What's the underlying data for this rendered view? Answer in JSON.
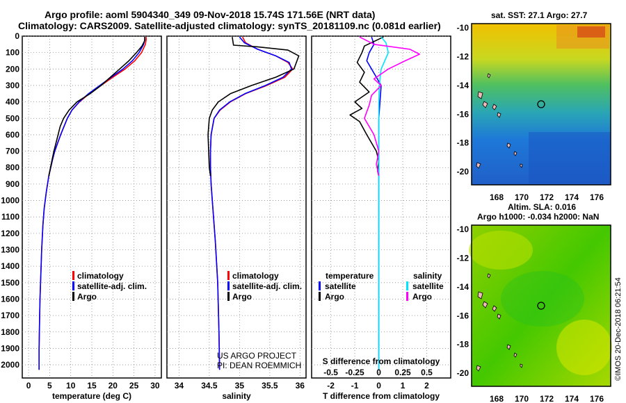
{
  "header": {
    "title_line1": "Argo profile: aoml 5904340_349 09-Nov-2018 15.74S 171.56E (NRT data)",
    "title_line2": "Climatology: CARS2009. Satellite-adjusted climatology: synTS_20181109.nc (0.081d earlier)"
  },
  "colors": {
    "climatology": "#ff0000",
    "satellite": "#0000ff",
    "argo": "#000000",
    "t_satellite": "#0000ff",
    "s_satellite": "#00e5ff",
    "s_argo": "#ff00ff",
    "grid": "#888888"
  },
  "chart_data": [
    {
      "id": "temperature",
      "type": "line",
      "xlabel": "temperature (deg C)",
      "ylabel": "",
      "xlim": [
        -1.5,
        31.5
      ],
      "ylim": [
        2080,
        0
      ],
      "x_ticks": [
        0,
        5,
        10,
        15,
        20,
        25,
        30
      ],
      "x_tick_labels": [
        "0",
        "5",
        "10",
        "15",
        "20",
        "25",
        "30"
      ],
      "y_ticks": [
        0,
        100,
        200,
        300,
        400,
        500,
        600,
        700,
        800,
        900,
        1000,
        1100,
        1200,
        1300,
        1400,
        1500,
        1600,
        1700,
        1800,
        1900,
        2000
      ],
      "y_tick_labels": [
        "0",
        "100",
        "200",
        "300",
        "400",
        "500",
        "600",
        "700",
        "800",
        "900",
        "1000",
        "1100",
        "1200",
        "1300",
        "1400",
        "1500",
        "1600",
        "1700",
        "1800",
        "1900",
        "2000"
      ],
      "grid": true,
      "legend": [
        "climatology",
        "satellite-adj. clim.",
        "Argo"
      ],
      "series": [
        {
          "name": "climatology",
          "color": "#ff0000",
          "x": [
            27.9,
            27.9,
            27.7,
            26.8,
            25.2,
            22.9,
            20.0,
            17.2,
            14.4,
            12.1,
            10.3,
            9.2,
            8.4,
            7.6,
            6.9,
            6.2,
            5.7,
            4.8,
            4.2,
            3.7,
            3.4,
            3.1,
            2.9,
            2.7,
            2.6,
            2.5,
            2.5
          ],
          "y": [
            5,
            20,
            50,
            100,
            150,
            200,
            250,
            300,
            350,
            400,
            450,
            500,
            550,
            600,
            650,
            700,
            750,
            850,
            950,
            1050,
            1150,
            1300,
            1450,
            1600,
            1750,
            1900,
            2030
          ]
        },
        {
          "name": "satellite-adj. clim.",
          "color": "#0000ff",
          "x": [
            27.5,
            27.6,
            27.3,
            26.2,
            24.6,
            22.4,
            19.6,
            16.9,
            14.2,
            12.0,
            10.3,
            9.2,
            8.4,
            7.6,
            6.9,
            6.2,
            5.7,
            4.8,
            4.2,
            3.7,
            3.4,
            3.1,
            2.9,
            2.7,
            2.6,
            2.5,
            2.5
          ],
          "y": [
            5,
            20,
            50,
            100,
            150,
            200,
            250,
            300,
            350,
            400,
            450,
            500,
            550,
            600,
            650,
            700,
            750,
            850,
            950,
            1050,
            1150,
            1300,
            1450,
            1600,
            1750,
            1900,
            2030
          ]
        },
        {
          "name": "Argo",
          "color": "#000000",
          "x": [
            27.6,
            27.5,
            26.9,
            25.6,
            23.8,
            21.6,
            19.4,
            17.2,
            14.6,
            11.5,
            9.6,
            8.3,
            7.5,
            7.0,
            6.5,
            6.0,
            5.6,
            5.2,
            4.8
          ],
          "y": [
            5,
            30,
            60,
            100,
            150,
            200,
            250,
            300,
            350,
            400,
            450,
            500,
            550,
            600,
            650,
            700,
            750,
            800,
            850
          ]
        }
      ]
    },
    {
      "id": "salinity",
      "type": "line",
      "xlabel": "salinity",
      "xlim": [
        33.8,
        36.1
      ],
      "ylim": [
        2080,
        0
      ],
      "x_ticks": [
        34,
        34.5,
        35,
        35.5,
        36
      ],
      "x_tick_labels": [
        "34",
        "34.5",
        "35",
        "35.5",
        "36"
      ],
      "grid": true,
      "legend": [
        "climatology",
        "satellite-adj. clim.",
        "Argo"
      ],
      "annotations": [
        "US ARGO PROJECT",
        "PI: DEAN ROEMMICH"
      ],
      "series": [
        {
          "name": "climatology",
          "color": "#ff0000",
          "x": [
            35.05,
            35.1,
            35.3,
            35.6,
            35.8,
            35.88,
            35.75,
            35.45,
            35.1,
            34.85,
            34.68,
            34.58,
            34.53,
            34.52,
            34.52,
            34.53,
            34.56,
            34.6,
            34.64,
            34.66,
            34.67
          ],
          "y": [
            5,
            40,
            80,
            120,
            160,
            200,
            250,
            300,
            350,
            400,
            450,
            500,
            600,
            700,
            800,
            900,
            1050,
            1250,
            1500,
            1800,
            2030
          ]
        },
        {
          "name": "satellite-adj. clim.",
          "color": "#0000ff",
          "x": [
            35.0,
            35.08,
            35.3,
            35.6,
            35.82,
            35.86,
            35.72,
            35.43,
            35.09,
            34.84,
            34.67,
            34.58,
            34.53,
            34.52,
            34.52,
            34.53,
            34.56,
            34.6,
            34.64,
            34.66,
            34.67
          ],
          "y": [
            5,
            40,
            80,
            120,
            160,
            200,
            250,
            300,
            350,
            400,
            450,
            500,
            600,
            700,
            800,
            900,
            1050,
            1250,
            1500,
            1800,
            2030
          ]
        },
        {
          "name": "Argo",
          "color": "#000000",
          "x": [
            34.88,
            34.9,
            35.3,
            35.8,
            35.98,
            35.9,
            35.6,
            35.2,
            34.85,
            34.65,
            34.55,
            34.5,
            34.48,
            34.49,
            34.5,
            34.52
          ],
          "y": [
            5,
            55,
            65,
            85,
            120,
            200,
            250,
            300,
            350,
            400,
            450,
            500,
            600,
            700,
            800,
            850
          ]
        }
      ]
    },
    {
      "id": "difference",
      "type": "line",
      "xlabel": "T difference from climatology",
      "xlabel_top": "S difference from climatology",
      "xlim": [
        -2.8,
        3.0
      ],
      "ylim": [
        2080,
        0
      ],
      "x_ticks": [
        -2,
        -1,
        0,
        1,
        2
      ],
      "x_tick_labels": [
        "-2",
        "-1",
        "0",
        "1",
        "2"
      ],
      "s_ticks": [
        -0.5,
        -0.25,
        0,
        0.25,
        0.5
      ],
      "s_tick_labels": [
        "-0.5",
        "-0.25",
        "0",
        "0.25",
        "0.5"
      ],
      "grid": true,
      "legend_left_title": "temperature",
      "legend_right_title": "salinity",
      "legend_left": [
        "satellite",
        "Argo"
      ],
      "legend_right": [
        "satellite",
        "Argo"
      ],
      "series": [
        {
          "name": "T satellite",
          "color": "#0000ff",
          "x": [
            -0.3,
            -0.2,
            -0.4,
            -0.5,
            -0.3,
            -0.1,
            0.1,
            0.05,
            0,
            0,
            0,
            0,
            0,
            0,
            0,
            0
          ],
          "y": [
            5,
            50,
            100,
            150,
            200,
            250,
            300,
            400,
            500,
            600,
            700,
            900,
            1100,
            1400,
            1700,
            2030
          ]
        },
        {
          "name": "T Argo",
          "color": "#000000",
          "x": [
            0.2,
            -0.6,
            -0.7,
            -0.9,
            -0.6,
            -0.8,
            -0.4,
            -1.0,
            -0.7,
            -1.2,
            -0.8,
            -0.5,
            -0.1,
            0,
            -0.05,
            0
          ],
          "y": [
            5,
            60,
            100,
            160,
            220,
            280,
            340,
            400,
            440,
            480,
            520,
            600,
            700,
            760,
            820,
            850
          ]
        },
        {
          "name": "S satellite",
          "color": "#00e5ff",
          "x": [
            0.1,
            0.3,
            0.4,
            0.25,
            0.1,
            0.05,
            0.02,
            0,
            0,
            0,
            0,
            0,
            0,
            0,
            0
          ],
          "y": [
            5,
            40,
            100,
            150,
            200,
            260,
            320,
            400,
            500,
            600,
            800,
            1000,
            1300,
            1700,
            2030
          ]
        },
        {
          "name": "S Argo",
          "color": "#ff00ff",
          "x": [
            -0.8,
            -0.2,
            1.3,
            1.7,
            1.1,
            0.4,
            -0.2,
            0.1,
            -0.3,
            -0.4,
            -0.6,
            -0.2,
            0,
            -0.1,
            0
          ],
          "y": [
            5,
            50,
            80,
            110,
            150,
            200,
            260,
            300,
            360,
            420,
            500,
            600,
            700,
            780,
            850
          ]
        }
      ]
    }
  ],
  "maps": {
    "sst": {
      "title": "sat. SST: 27.1 Argo: 27.7",
      "lon_ticks": [
        "168",
        "170",
        "172",
        "174",
        "176"
      ],
      "lat_ticks": [
        "-10",
        "-12",
        "-14",
        "-16",
        "-18",
        "-20"
      ]
    },
    "sla": {
      "title_line1": "Altim. SLA: 0.016",
      "title_line2": "Argo h1000: -0.034 h2000: NaN",
      "lon_ticks": [
        "168",
        "170",
        "172",
        "174",
        "176"
      ],
      "lat_ticks": [
        "-10",
        "-12",
        "-14",
        "-16",
        "-18",
        "-20"
      ]
    }
  },
  "footer": {
    "stamp": "©IMOS 20-Dec-2018 06:21:54"
  }
}
